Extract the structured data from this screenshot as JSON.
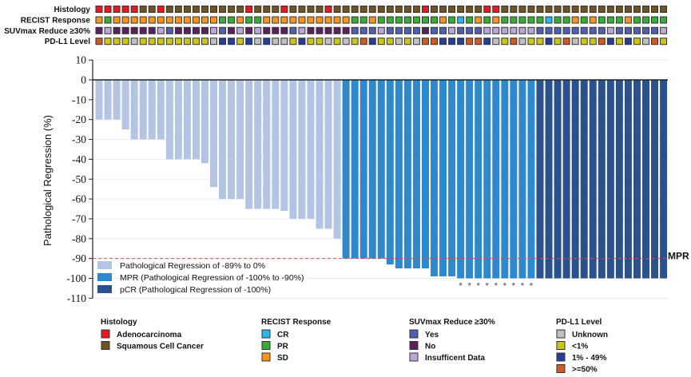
{
  "chart_data": {
    "type": "bar",
    "subtype": "waterfall-with-annotation-tracks",
    "ylabel": "Pathological Regression (%)",
    "ylim": [
      -110,
      10
    ],
    "yticks": [
      10,
      0,
      -10,
      -20,
      -30,
      -40,
      -50,
      -60,
      -70,
      -80,
      -90,
      -100,
      -110
    ],
    "grid": true,
    "reference_line": {
      "value": -90,
      "label": "MPR",
      "color": "#e04848",
      "style": "dashed"
    },
    "values": [
      -20,
      -20,
      -20,
      -25,
      -30,
      -30,
      -30,
      -30,
      -40,
      -40,
      -40,
      -40,
      -42,
      -54,
      -60,
      -60,
      -60,
      -65,
      -65,
      -65,
      -65,
      -66,
      -70,
      -70,
      -70,
      -75,
      -75,
      -80,
      -90,
      -90,
      -90,
      -90,
      -90,
      -93,
      -95,
      -95,
      -95,
      -95,
      -99,
      -99,
      -99,
      -100,
      -100,
      -100,
      -100,
      -100,
      -100,
      -100,
      -100,
      -100,
      -100,
      -100,
      -100,
      -100,
      -100,
      -100,
      -100,
      -100,
      -100,
      -100,
      -100,
      -100,
      -100,
      -100,
      -100
    ],
    "groups": [
      "L",
      "L",
      "L",
      "L",
      "L",
      "L",
      "L",
      "L",
      "L",
      "L",
      "L",
      "L",
      "L",
      "L",
      "L",
      "L",
      "L",
      "L",
      "L",
      "L",
      "L",
      "L",
      "L",
      "L",
      "L",
      "L",
      "L",
      "L",
      "M",
      "M",
      "M",
      "M",
      "M",
      "M",
      "M",
      "M",
      "M",
      "M",
      "M",
      "M",
      "M",
      "M",
      "M",
      "M",
      "M",
      "M",
      "M",
      "M",
      "M",
      "M",
      "P",
      "P",
      "P",
      "P",
      "P",
      "P",
      "P",
      "P",
      "P",
      "P",
      "P",
      "P",
      "P",
      "P",
      "P"
    ],
    "asterisk_marker": "*",
    "asterisk_bars": [
      41,
      42,
      43,
      44,
      45,
      46,
      47,
      48,
      49
    ],
    "bar_legend": {
      "placement": "bottom-left-inside",
      "items": [
        {
          "key": "L",
          "label": "Pathological Regression of -89% to 0%",
          "color": "#b3c5e3"
        },
        {
          "key": "M",
          "label": "MPR (Pathological Regression of -100% to -90%)",
          "color": "#2f88cc"
        },
        {
          "key": "P",
          "label": "pCR (Pathological Regression of -100%)",
          "color": "#2b518d"
        }
      ]
    },
    "tracks": [
      {
        "title": "Histology",
        "values": [
          "A",
          "A",
          "A",
          "A",
          "A",
          "S",
          "S",
          "A",
          "S",
          "S",
          "S",
          "S",
          "S",
          "S",
          "S",
          "S",
          "S",
          "A",
          "S",
          "S",
          "S",
          "A",
          "S",
          "S",
          "S",
          "S",
          "A",
          "S",
          "S",
          "S",
          "S",
          "S",
          "S",
          "S",
          "S",
          "S",
          "S",
          "A",
          "S",
          "S",
          "S",
          "S",
          "S",
          "S",
          "A",
          "A",
          "S",
          "S",
          "S",
          "S",
          "S",
          "S",
          "S",
          "S",
          "S",
          "S",
          "S",
          "S",
          "S",
          "S",
          "S",
          "S",
          "S",
          "S",
          "S"
        ],
        "legend": [
          {
            "key": "A",
            "label": "Adenocarcinoma",
            "color": "#e8191f"
          },
          {
            "key": "S",
            "label": "Squamous Cell Cancer",
            "color": "#6e5422"
          }
        ]
      },
      {
        "title": "RECIST Response",
        "values": [
          "SD",
          "PR",
          "SD",
          "SD",
          "SD",
          "SD",
          "SD",
          "SD",
          "SD",
          "SD",
          "SD",
          "SD",
          "SD",
          "SD",
          "PR",
          "PR",
          "SD",
          "PR",
          "PR",
          "SD",
          "SD",
          "SD",
          "SD",
          "SD",
          "SD",
          "SD",
          "SD",
          "SD",
          "SD",
          "PR",
          "PR",
          "SD",
          "PR",
          "PR",
          "PR",
          "PR",
          "PR",
          "PR",
          "PR",
          "SD",
          "PR",
          "CR",
          "PR",
          "SD",
          "PR",
          "SD",
          "PR",
          "PR",
          "PR",
          "PR",
          "PR",
          "CR",
          "PR",
          "PR",
          "SD",
          "PR",
          "SD",
          "PR",
          "PR",
          "PR",
          "SD",
          "PR",
          "PR",
          "PR",
          "PR"
        ],
        "legend": [
          {
            "key": "CR",
            "label": "CR",
            "color": "#2bb7ea"
          },
          {
            "key": "PR",
            "label": "PR",
            "color": "#3aab37"
          },
          {
            "key": "SD",
            "label": "SD",
            "color": "#f7951f"
          }
        ]
      },
      {
        "title": "SUVmax Reduce ≥30%",
        "values": [
          "N",
          "I",
          "N",
          "N",
          "N",
          "N",
          "N",
          "I",
          "Y",
          "N",
          "N",
          "N",
          "N",
          "I",
          "Y",
          "N",
          "I",
          "N",
          "I",
          "N",
          "N",
          "N",
          "Y",
          "I",
          "N",
          "N",
          "N",
          "N",
          "N",
          "Y",
          "Y",
          "Y",
          "I",
          "Y",
          "Y",
          "Y",
          "Y",
          "N",
          "Y",
          "Y",
          "I",
          "Y",
          "Y",
          "Y",
          "I",
          "I",
          "I",
          "I",
          "I",
          "I",
          "Y",
          "Y",
          "Y",
          "Y",
          "Y",
          "Y",
          "Y",
          "Y",
          "I",
          "Y",
          "Y",
          "Y",
          "Y",
          "Y",
          "I"
        ],
        "legend": [
          {
            "key": "Y",
            "label": "Yes",
            "color": "#4f5fb1"
          },
          {
            "key": "N",
            "label": "No",
            "color": "#5b2060"
          },
          {
            "key": "I",
            "label": "Insufficent Data",
            "color": "#baa6d7"
          }
        ]
      },
      {
        "title": "PD-L1 Level",
        "values": [
          "H",
          "L",
          "L",
          "L",
          "U",
          "L",
          "L",
          "L",
          "L",
          "L",
          "L",
          "L",
          "L",
          "U",
          "M",
          "M",
          "L",
          "M",
          "U",
          "M",
          "U",
          "U",
          "L",
          "M",
          "L",
          "L",
          "U",
          "L",
          "U",
          "L",
          "H",
          "M",
          "L",
          "L",
          "U",
          "L",
          "U",
          "H",
          "H",
          "M",
          "M",
          "M",
          "H",
          "H",
          "M",
          "U",
          "L",
          "H",
          "U",
          "L",
          "L",
          "M",
          "L",
          "H",
          "U",
          "L",
          "L",
          "H",
          "M",
          "L",
          "M",
          "L",
          "U",
          "H",
          "L"
        ],
        "legend": [
          {
            "key": "U",
            "label": "Unknown",
            "color": "#c0c0c0"
          },
          {
            "key": "L",
            "label": "<1%",
            "color": "#c9c51b"
          },
          {
            "key": "M",
            "label": "1% - 49%",
            "color": "#263e97"
          },
          {
            "key": "H",
            "label": ">=50%",
            "color": "#c95c29"
          }
        ]
      }
    ]
  }
}
